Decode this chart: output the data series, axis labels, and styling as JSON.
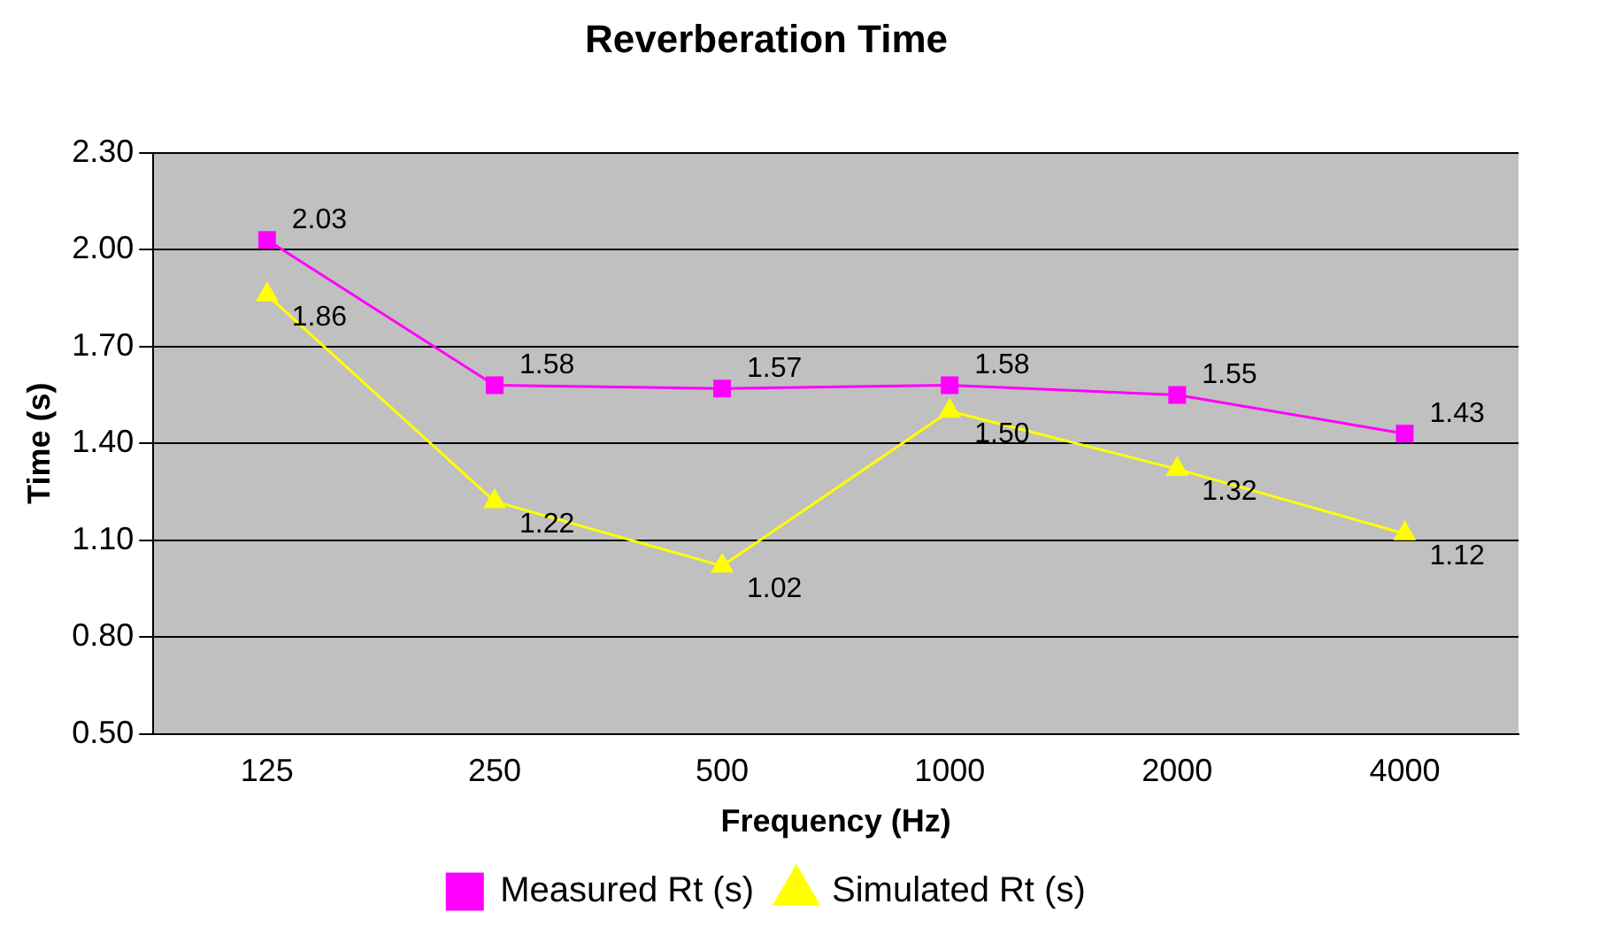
{
  "chart_data": {
    "type": "line",
    "title": "Reverberation Time",
    "xlabel": "Frequency (Hz)",
    "ylabel": "Time (s)",
    "categories": [
      "125",
      "250",
      "500",
      "1000",
      "2000",
      "4000"
    ],
    "series": [
      {
        "name": "Measured Rt (s)",
        "color": "#ff00ff",
        "marker": "square",
        "values": [
          2.03,
          1.58,
          1.57,
          1.58,
          1.55,
          1.43
        ],
        "value_labels": [
          "2.03",
          "1.58",
          "1.57",
          "1.58",
          "1.55",
          "1.43"
        ]
      },
      {
        "name": "Simulated Rt (s)",
        "color": "#ffff00",
        "marker": "triangle",
        "values": [
          1.86,
          1.22,
          1.02,
          1.5,
          1.32,
          1.12
        ],
        "value_labels": [
          "1.86",
          "1.22",
          "1.02",
          "1.50",
          "1.32",
          "1.12"
        ]
      }
    ],
    "ylim": [
      0.5,
      2.3
    ],
    "yticks": [
      {
        "value": 0.5,
        "label": "0.50"
      },
      {
        "value": 0.8,
        "label": "0.80"
      },
      {
        "value": 1.1,
        "label": "1.10"
      },
      {
        "value": 1.4,
        "label": "1.40"
      },
      {
        "value": 1.7,
        "label": "1.70"
      },
      {
        "value": 2.0,
        "label": "2.00"
      },
      {
        "value": 2.3,
        "label": "2.30"
      }
    ],
    "grid": "y",
    "legend": "bottom"
  }
}
